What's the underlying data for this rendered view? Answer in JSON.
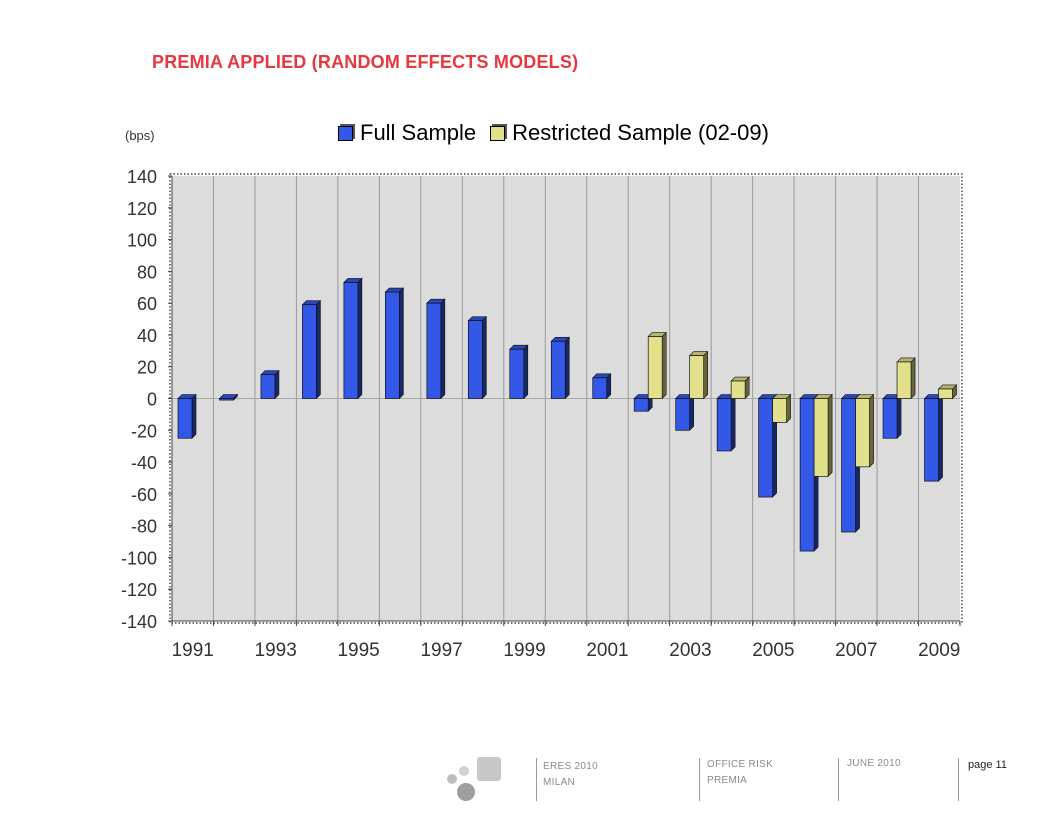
{
  "title": "PREMIA APPLIED (RANDOM EFFECTS MODELS)",
  "unit_label": "(bps)",
  "colors": {
    "title": "#e8383d",
    "full_sample": "#3358e8",
    "restricted_sample": "#e2e08a",
    "plot_background": "#dcdcdc"
  },
  "chart_data": {
    "type": "bar",
    "x": [
      1991,
      1992,
      1993,
      1994,
      1995,
      1996,
      1997,
      1998,
      1999,
      2000,
      2001,
      2002,
      2003,
      2004,
      2005,
      2006,
      2007,
      2008,
      2009
    ],
    "x_tick_labels": [
      "1991",
      "1993",
      "1995",
      "1997",
      "1999",
      "2001",
      "2003",
      "2005",
      "2007",
      "2009"
    ],
    "series": [
      {
        "name": "Full Sample",
        "values": [
          -25,
          -1,
          15,
          59,
          73,
          67,
          60,
          49,
          31,
          36,
          13,
          -8,
          -20,
          -33,
          -62,
          -96,
          -84,
          -25,
          -52
        ]
      },
      {
        "name": "Restricted Sample (02-09)",
        "values": [
          null,
          null,
          null,
          null,
          null,
          null,
          null,
          null,
          null,
          null,
          null,
          39,
          27,
          11,
          -15,
          -49,
          -43,
          23,
          6
        ]
      }
    ],
    "ylim": [
      -140,
      140
    ],
    "yticks": [
      140,
      120,
      100,
      80,
      60,
      40,
      20,
      0,
      -20,
      -40,
      -60,
      -80,
      -100,
      -120,
      -140
    ],
    "grid": true,
    "legend": "top"
  },
  "footer": {
    "event": "ERES 2010",
    "city": "MILAN",
    "topic_line1": "OFFICE RISK",
    "topic_line2": "PREMIA",
    "date": "JUNE 2010",
    "page": "page 11"
  }
}
